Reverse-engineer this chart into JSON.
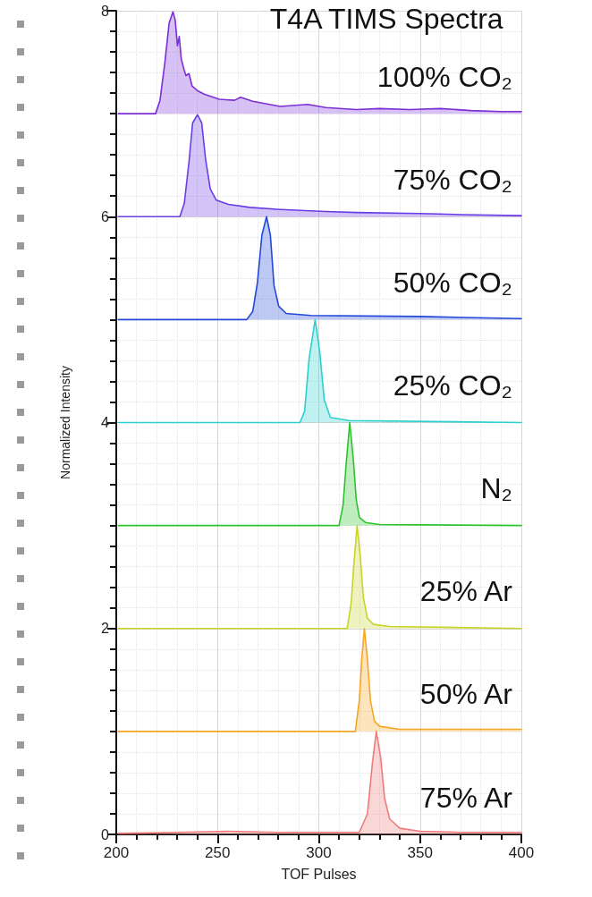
{
  "chart_data": {
    "type": "area",
    "title": "T4A TIMS Spectra",
    "xlabel": "TOF Pulses",
    "ylabel": "Normalized Intensity",
    "xlim": [
      200,
      400
    ],
    "ylim": [
      0,
      8
    ],
    "grid": true,
    "xticks": [
      200,
      {
        "value": 210,
        "label": null
      },
      {
        "value": 220,
        "label": null
      },
      {
        "value": 230,
        "label": null
      },
      {
        "value": 240,
        "label": null
      },
      250,
      {
        "value": 260,
        "label": null
      },
      {
        "value": 270,
        "label": null
      },
      {
        "value": 280,
        "label": null
      },
      {
        "value": 290,
        "label": null
      },
      300,
      {
        "value": 310,
        "label": null
      },
      {
        "value": 320,
        "label": null
      },
      {
        "value": 330,
        "label": null
      },
      {
        "value": 340,
        "label": null
      },
      350,
      {
        "value": 360,
        "label": null
      },
      {
        "value": 370,
        "label": null
      },
      {
        "value": 380,
        "label": null
      },
      {
        "value": 390,
        "label": null
      },
      400
    ],
    "yticks": [
      0,
      {
        "value": 0.2,
        "label": null
      },
      {
        "value": 0.4,
        "label": null
      },
      {
        "value": 0.6,
        "label": null
      },
      {
        "value": 0.8,
        "label": null
      },
      {
        "value": 1,
        "label": null
      },
      {
        "value": 1.2,
        "label": null
      },
      {
        "value": 1.4,
        "label": null
      },
      {
        "value": 1.6,
        "label": null
      },
      {
        "value": 1.8,
        "label": null
      },
      2,
      {
        "value": 2.2,
        "label": null
      },
      {
        "value": 2.4,
        "label": null
      },
      {
        "value": 2.6,
        "label": null
      },
      {
        "value": 2.8,
        "label": null
      },
      {
        "value": 3,
        "label": null
      },
      {
        "value": 3.2,
        "label": null
      },
      {
        "value": 3.4,
        "label": null
      },
      {
        "value": 3.6,
        "label": null
      },
      {
        "value": 3.8,
        "label": null
      },
      4,
      {
        "value": 4.2,
        "label": null
      },
      {
        "value": 4.4,
        "label": null
      },
      {
        "value": 4.6,
        "label": null
      },
      {
        "value": 4.8,
        "label": null
      },
      {
        "value": 5,
        "label": null
      },
      {
        "value": 5.2,
        "label": null
      },
      {
        "value": 5.4,
        "label": null
      },
      {
        "value": 5.6,
        "label": null
      },
      {
        "value": 5.8,
        "label": null
      },
      6,
      {
        "value": 6.2,
        "label": null
      },
      {
        "value": 6.4,
        "label": null
      },
      {
        "value": 6.6,
        "label": null
      },
      {
        "value": 6.8,
        "label": null
      },
      {
        "value": 7,
        "label": null
      },
      {
        "value": 7.2,
        "label": null
      },
      {
        "value": 7.4,
        "label": null
      },
      {
        "value": 7.6,
        "label": null
      },
      {
        "value": 7.8,
        "label": null
      },
      8
    ],
    "series": [
      {
        "name": "100% CO₂",
        "color": "#7b2fd6",
        "x": [
          201,
          219.4,
          221.6,
          223.9,
          226.1,
          228,
          229.1,
          230.2,
          231.1,
          232.1,
          233.6,
          234.4,
          235.9,
          237.4,
          240.4,
          243.4,
          250.9,
          258.4,
          261.4,
          267.4,
          281,
          294.5,
          303.5,
          318.5,
          330,
          345,
          360,
          375,
          390,
          400
        ],
        "values": [
          7.0,
          7.0,
          7.13,
          7.48,
          7.88,
          7.99,
          7.91,
          7.66,
          7.75,
          7.53,
          7.42,
          7.37,
          7.39,
          7.27,
          7.22,
          7.19,
          7.14,
          7.13,
          7.16,
          7.12,
          7.07,
          7.09,
          7.06,
          7.04,
          7.05,
          7.04,
          7.05,
          7.03,
          7.02,
          7.02
        ]
      },
      {
        "name": "75% CO₂",
        "color": "#6a3ce6",
        "x": [
          201,
          231.4,
          233.6,
          235.9,
          237.7,
          240.1,
          242.2,
          244.1,
          246.4,
          249.4,
          255.4,
          265.9,
          281,
          303.5,
          318.5,
          350,
          370,
          400
        ],
        "values": [
          6.0,
          6.0,
          6.13,
          6.53,
          6.91,
          6.99,
          6.91,
          6.56,
          6.27,
          6.16,
          6.12,
          6.09,
          6.07,
          6.05,
          6.04,
          6.03,
          6.02,
          6.01
        ]
      },
      {
        "name": "50% CO₂",
        "color": "#2448d8",
        "x": [
          201,
          264.4,
          267.4,
          269.7,
          271.9,
          274.2,
          276.1,
          277.9,
          280.2,
          283.9,
          296,
          350,
          400
        ],
        "values": [
          5.0,
          5.0,
          5.08,
          5.36,
          5.82,
          6.0,
          5.82,
          5.33,
          5.13,
          5.06,
          5.04,
          5.03,
          5.01
        ]
      },
      {
        "name": "25% CO₂",
        "color": "#2ecfcf",
        "x": [
          201,
          290.7,
          293,
          295.2,
          298.2,
          300.5,
          302.7,
          305.7,
          315,
          400
        ],
        "values": [
          4.0,
          4.0,
          4.11,
          4.62,
          5.0,
          4.68,
          4.22,
          4.05,
          4.02,
          4.0
        ]
      },
      {
        "name": "N₂",
        "color": "#2fc22f",
        "x": [
          201,
          310,
          312,
          313.5,
          315.3,
          317,
          318.5,
          320,
          323,
          330,
          400
        ],
        "values": [
          3.0,
          3.0,
          3.2,
          3.6,
          4.0,
          3.65,
          3.25,
          3.08,
          3.03,
          3.01,
          3.0
        ]
      },
      {
        "name": "25% Ar",
        "color": "#c8d42a",
        "x": [
          201,
          314,
          316,
          317.4,
          318.9,
          320.5,
          322,
          324,
          327,
          335,
          400
        ],
        "values": [
          2.0,
          2.0,
          2.25,
          2.65,
          3.0,
          2.7,
          2.3,
          2.1,
          2.04,
          2.02,
          2.0
        ]
      },
      {
        "name": "50% Ar",
        "color": "#f5a623",
        "x": [
          201,
          318,
          320,
          321.2,
          322.5,
          324,
          325.5,
          327.5,
          330,
          340,
          400
        ],
        "values": [
          1.0,
          1.0,
          1.3,
          1.7,
          2.0,
          1.7,
          1.3,
          1.1,
          1.05,
          1.02,
          1.02
        ]
      },
      {
        "name": "75% Ar",
        "color": "#f07a7a",
        "x": [
          201,
          230,
          255,
          280,
          300,
          320,
          324,
          326.5,
          328.4,
          330.5,
          332.5,
          335,
          340,
          350,
          370,
          400
        ],
        "values": [
          0.01,
          0.02,
          0.03,
          0.02,
          0.02,
          0.02,
          0.2,
          0.7,
          1.0,
          0.75,
          0.35,
          0.15,
          0.06,
          0.03,
          0.02,
          0.02
        ]
      }
    ]
  }
}
